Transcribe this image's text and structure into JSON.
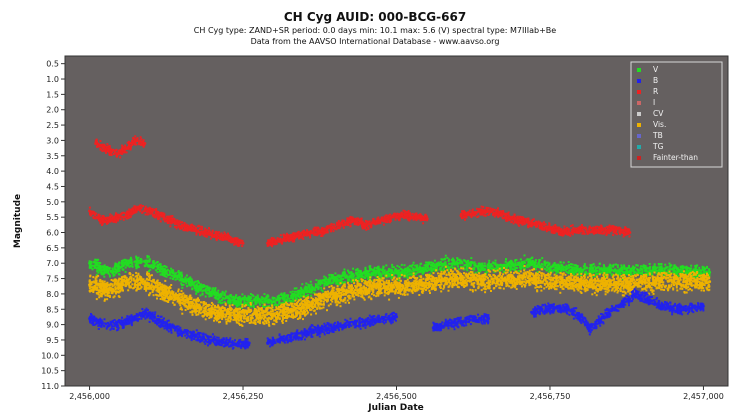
{
  "chart_data": {
    "type": "scatter",
    "title": "CH Cyg   AUID: 000-BCG-667",
    "subtitle": "CH Cyg  type: ZAND+SR   period: 0.0 days   min: 10.1   max: 5.6 (V)   spectral type: M7IIIab+Be",
    "source": "Data from the AAVSO International Database - www.aavso.org",
    "xlabel": "Julian Date",
    "ylabel": "Magnitude",
    "xlim": [
      2455960,
      2457040
    ],
    "ylim": [
      0.25,
      11.0
    ],
    "y_inverted": true,
    "x_ticks": [
      2456000,
      2456250,
      2456500,
      2456750,
      2457000
    ],
    "x_tick_labels": [
      "2,456,000",
      "2,456,250",
      "2,456,500",
      "2,456,750",
      "2,457,000"
    ],
    "y_ticks": [
      0.5,
      1.0,
      1.5,
      2.0,
      2.5,
      3.0,
      3.5,
      4.0,
      4.5,
      5.0,
      5.5,
      6.0,
      6.5,
      7.0,
      7.5,
      8.0,
      8.5,
      9.0,
      9.5,
      10.0,
      10.5,
      11.0
    ],
    "y_tick_labels": [
      "0.5",
      "1.0",
      "1.5",
      "2.0",
      "2.5",
      "3.0",
      "3.5",
      "4.0",
      "4.5",
      "5.0",
      "5.5",
      "6.0",
      "6.5",
      "7.0",
      "7.5",
      "8.0",
      "8.5",
      "9.0",
      "9.5",
      "10.0",
      "10.5",
      "11.0"
    ],
    "plot_background": "#656060",
    "legend_position": "top-right",
    "legend": [
      {
        "name": "V",
        "color": "#22dd22"
      },
      {
        "name": "B",
        "color": "#2222ee"
      },
      {
        "name": "R",
        "color": "#ee2222"
      },
      {
        "name": "I",
        "color": "#cc6666"
      },
      {
        "name": "CV",
        "color": "#cccccc"
      },
      {
        "name": "Vis.",
        "color": "#eeb200"
      },
      {
        "name": "TB",
        "color": "#6666cc"
      },
      {
        "name": "TG",
        "color": "#22aaaa"
      },
      {
        "name": "Fainter-than",
        "color": "#cc2222"
      }
    ],
    "series": [
      {
        "name": "R",
        "color": "#ee2222",
        "spread": 0.14,
        "segments": [
          [
            [
              2456010,
              3.1
            ],
            [
              2456030,
              3.3
            ],
            [
              2456045,
              3.45
            ],
            [
              2456060,
              3.25
            ],
            [
              2456075,
              3.0
            ],
            [
              2456090,
              3.1
            ]
          ],
          [
            [
              2456000,
              5.3
            ],
            [
              2456020,
              5.6
            ],
            [
              2456040,
              5.55
            ],
            [
              2456060,
              5.4
            ],
            [
              2456080,
              5.2
            ],
            [
              2456100,
              5.3
            ],
            [
              2456130,
              5.6
            ],
            [
              2456160,
              5.85
            ],
            [
              2456190,
              6.0
            ],
            [
              2456220,
              6.15
            ],
            [
              2456250,
              6.35
            ]
          ],
          [
            [
              2456290,
              6.35
            ],
            [
              2456320,
              6.2
            ],
            [
              2456350,
              6.05
            ],
            [
              2456380,
              5.95
            ],
            [
              2456410,
              5.7
            ],
            [
              2456430,
              5.6
            ],
            [
              2456450,
              5.75
            ],
            [
              2456475,
              5.6
            ],
            [
              2456500,
              5.5
            ],
            [
              2456520,
              5.45
            ],
            [
              2456550,
              5.55
            ]
          ],
          [
            [
              2456605,
              5.45
            ],
            [
              2456625,
              5.35
            ],
            [
              2456650,
              5.3
            ],
            [
              2456670,
              5.4
            ],
            [
              2456690,
              5.55
            ],
            [
              2456720,
              5.7
            ],
            [
              2456750,
              5.85
            ],
            [
              2456770,
              6.0
            ],
            [
              2456800,
              5.9
            ],
            [
              2456820,
              5.95
            ],
            [
              2456850,
              5.9
            ],
            [
              2456880,
              6.0
            ]
          ]
        ]
      },
      {
        "name": "V",
        "color": "#22dd22",
        "spread": 0.2,
        "segments": [
          [
            [
              2456000,
              7.0
            ],
            [
              2456030,
              7.3
            ],
            [
              2456060,
              7.0
            ],
            [
              2456090,
              6.95
            ],
            [
              2456120,
              7.2
            ],
            [
              2456150,
              7.5
            ],
            [
              2456180,
              7.8
            ],
            [
              2456210,
              8.05
            ],
            [
              2456240,
              8.25
            ],
            [
              2456270,
              8.2
            ],
            [
              2456300,
              8.25
            ],
            [
              2456330,
              8.1
            ],
            [
              2456360,
              7.85
            ],
            [
              2456390,
              7.6
            ],
            [
              2456420,
              7.45
            ],
            [
              2456450,
              7.35
            ],
            [
              2456480,
              7.3
            ],
            [
              2456510,
              7.3
            ],
            [
              2456540,
              7.2
            ],
            [
              2456570,
              7.05
            ],
            [
              2456600,
              7.0
            ],
            [
              2456640,
              7.15
            ],
            [
              2456680,
              7.1
            ],
            [
              2456720,
              7.0
            ],
            [
              2456760,
              7.15
            ],
            [
              2456800,
              7.25
            ],
            [
              2456840,
              7.2
            ],
            [
              2456880,
              7.3
            ],
            [
              2456920,
              7.2
            ],
            [
              2456960,
              7.25
            ],
            [
              2457010,
              7.3
            ]
          ]
        ]
      },
      {
        "name": "Vis.",
        "color": "#eeb200",
        "spread": 0.3,
        "segments": [
          [
            [
              2456000,
              7.7
            ],
            [
              2456030,
              7.9
            ],
            [
              2456060,
              7.6
            ],
            [
              2456090,
              7.6
            ],
            [
              2456120,
              7.9
            ],
            [
              2456150,
              8.2
            ],
            [
              2456180,
              8.45
            ],
            [
              2456210,
              8.65
            ],
            [
              2456240,
              8.7
            ],
            [
              2456270,
              8.65
            ],
            [
              2456300,
              8.7
            ],
            [
              2456330,
              8.55
            ],
            [
              2456360,
              8.35
            ],
            [
              2456390,
              8.1
            ],
            [
              2456420,
              7.95
            ],
            [
              2456450,
              7.85
            ],
            [
              2456480,
              7.75
            ],
            [
              2456510,
              7.75
            ],
            [
              2456540,
              7.7
            ],
            [
              2456570,
              7.55
            ],
            [
              2456600,
              7.5
            ],
            [
              2456640,
              7.6
            ],
            [
              2456680,
              7.55
            ],
            [
              2456720,
              7.5
            ],
            [
              2456760,
              7.6
            ],
            [
              2456800,
              7.7
            ],
            [
              2456840,
              7.65
            ],
            [
              2456880,
              7.7
            ],
            [
              2456920,
              7.6
            ],
            [
              2456960,
              7.6
            ],
            [
              2457010,
              7.6
            ]
          ]
        ]
      },
      {
        "name": "B",
        "color": "#2222ee",
        "spread": 0.16,
        "segments": [
          [
            [
              2456000,
              8.8
            ],
            [
              2456030,
              9.05
            ],
            [
              2456060,
              8.9
            ],
            [
              2456090,
              8.65
            ],
            [
              2456120,
              8.95
            ],
            [
              2456150,
              9.25
            ],
            [
              2456180,
              9.4
            ],
            [
              2456210,
              9.55
            ],
            [
              2456240,
              9.65
            ],
            [
              2456260,
              9.6
            ]
          ],
          [
            [
              2456290,
              9.6
            ],
            [
              2456320,
              9.45
            ],
            [
              2456350,
              9.3
            ],
            [
              2456380,
              9.15
            ],
            [
              2456410,
              9.05
            ],
            [
              2456440,
              8.95
            ],
            [
              2456470,
              8.85
            ],
            [
              2456500,
              8.75
            ]
          ],
          [
            [
              2456560,
              9.1
            ],
            [
              2456590,
              8.95
            ],
            [
              2456620,
              8.85
            ],
            [
              2456650,
              8.8
            ]
          ],
          [
            [
              2456720,
              8.6
            ],
            [
              2456750,
              8.45
            ],
            [
              2456780,
              8.5
            ],
            [
              2456800,
              8.75
            ],
            [
              2456815,
              9.15
            ],
            [
              2456830,
              8.9
            ],
            [
              2456850,
              8.55
            ],
            [
              2456870,
              8.3
            ],
            [
              2456890,
              8.0
            ],
            [
              2456910,
              8.2
            ],
            [
              2456940,
              8.45
            ],
            [
              2456970,
              8.5
            ],
            [
              2457000,
              8.4
            ]
          ]
        ]
      }
    ]
  }
}
